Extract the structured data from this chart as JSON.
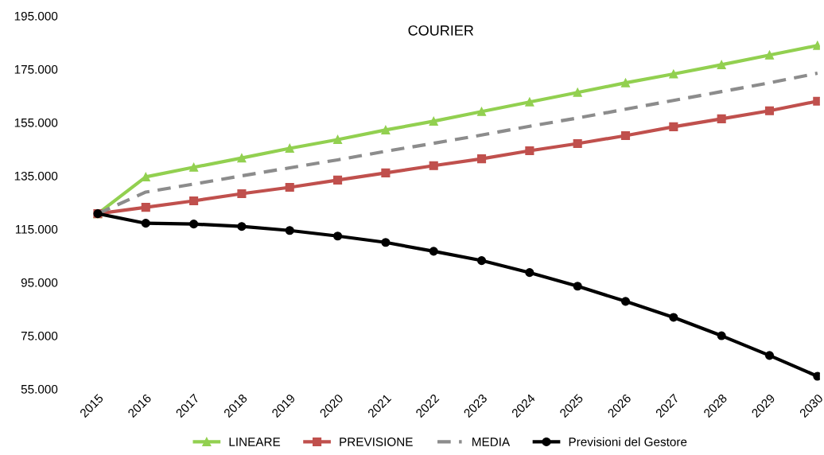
{
  "chart_data": {
    "type": "line",
    "title": "COURIER",
    "categories": [
      "2015",
      "2016",
      "2017",
      "2018",
      "2019",
      "2020",
      "2021",
      "2022",
      "2023",
      "2024",
      "2025",
      "2026",
      "2027",
      "2028",
      "2029",
      "2030"
    ],
    "series": [
      {
        "name": "LINEARE",
        "color": "#92d050",
        "marker": "triangle",
        "line_style": "solid",
        "values": [
          120800,
          134600,
          138200,
          141700,
          145300,
          148600,
          152200,
          155500,
          159100,
          162700,
          166300,
          169900,
          173200,
          176700,
          180300,
          183900
        ]
      },
      {
        "name": "PREVISIONE",
        "color": "#c0504d",
        "marker": "square",
        "line_style": "solid",
        "values": [
          120800,
          123200,
          125600,
          128300,
          130700,
          133400,
          136100,
          138800,
          141400,
          144400,
          147100,
          150100,
          153400,
          156400,
          159400,
          163000
        ]
      },
      {
        "name": "MEDIA",
        "color": "#8c8c8c",
        "marker": "none",
        "line_style": "dashed",
        "values": [
          120800,
          128900,
          131900,
          135000,
          138000,
          141000,
          144200,
          147200,
          150300,
          153600,
          156700,
          160000,
          163300,
          166600,
          169900,
          173500
        ]
      },
      {
        "name": "Previsioni del Gestore",
        "color": "#000000",
        "marker": "circle",
        "line_style": "solid",
        "values": [
          120800,
          117200,
          116900,
          116000,
          114500,
          112400,
          110000,
          106700,
          103200,
          98700,
          93600,
          87900,
          81900,
          75000,
          67600,
          59800
        ]
      }
    ],
    "ylim": [
      55000,
      195000
    ],
    "yticks": [
      {
        "value": 55000,
        "label": "55.000"
      },
      {
        "value": 75000,
        "label": "75.000"
      },
      {
        "value": 95000,
        "label": "95.000"
      },
      {
        "value": 115000,
        "label": "115.000"
      },
      {
        "value": 135000,
        "label": "135.000"
      },
      {
        "value": 155000,
        "label": "155.000"
      },
      {
        "value": 175000,
        "label": "175.000"
      },
      {
        "value": 195000,
        "label": "195.000"
      }
    ],
    "grid": false,
    "legend": "bottom"
  }
}
